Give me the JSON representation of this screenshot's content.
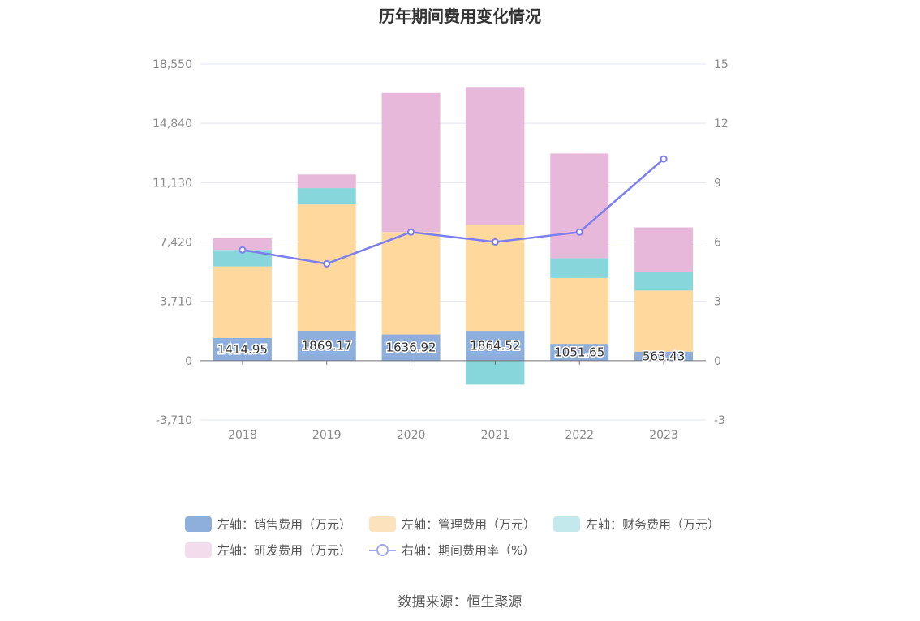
{
  "title": "历年期间费用变化情况",
  "source": "数据来源：恒生聚源",
  "legend": [
    {
      "label": "左轴：销售费用（万元）",
      "color": "#8eaedb",
      "kind": "bar"
    },
    {
      "label": "左轴：管理费用（万元）",
      "color": "#fde3bd",
      "kind": "bar"
    },
    {
      "label": "左轴：财务费用（万元）",
      "color": "#c3e9ec",
      "kind": "bar"
    },
    {
      "label": "左轴：研发费用（万元）",
      "color": "#f3dcec",
      "kind": "bar"
    },
    {
      "label": "右轴：期间费用率（%）",
      "color": "#a3a6f4",
      "kind": "line"
    }
  ],
  "chart_data": {
    "type": "bar",
    "stacked": true,
    "title": "历年期间费用变化情况",
    "categories": [
      "2018",
      "2019",
      "2020",
      "2021",
      "2022",
      "2023"
    ],
    "left_axis": {
      "ylim": [
        -3710,
        18550
      ],
      "ticks": [
        "18,550",
        "14,840",
        "11,130",
        "7,420",
        "3,710",
        "0",
        "-3,710"
      ],
      "tick_values": [
        18550,
        14840,
        11130,
        7420,
        3710,
        0,
        -3710
      ]
    },
    "right_axis": {
      "ylim": [
        -3,
        15
      ],
      "ticks": [
        "15",
        "12",
        "9",
        "6",
        "3",
        "0",
        "-3"
      ],
      "tick_values": [
        15,
        12,
        9,
        6,
        3,
        0,
        -3
      ]
    },
    "series": [
      {
        "name": "左轴：销售费用（万元）",
        "axis": "left",
        "color": "#8eaedb",
        "values": [
          1414.95,
          1869.17,
          1636.92,
          1864.52,
          1051.65,
          563.43
        ],
        "labels": [
          "1414.95",
          "1869.17",
          "1636.92",
          "1864.52",
          "1051.65",
          "563.43"
        ]
      },
      {
        "name": "左轴：管理费用（万元）",
        "axis": "left",
        "color": "#ffd89d",
        "values": [
          4480,
          7900,
          6400,
          6600,
          4120,
          3820
        ]
      },
      {
        "name": "左轴：财务费用（万元）",
        "axis": "left",
        "color": "#87d6db",
        "values": [
          1030,
          1020,
          -30,
          -1500,
          1240,
          1170
        ]
      },
      {
        "name": "左轴：研发费用（万元）",
        "axis": "left",
        "color": "#e7b8da",
        "values": [
          730,
          850,
          8700,
          8650,
          6540,
          2780
        ]
      },
      {
        "name": "右轴：期间费用率（%）",
        "axis": "right",
        "type": "line",
        "color": "#7b7ff0",
        "values": [
          5.6,
          4.9,
          6.5,
          6.0,
          6.5,
          10.2
        ]
      }
    ],
    "grid": true,
    "legend_position": "bottom"
  }
}
